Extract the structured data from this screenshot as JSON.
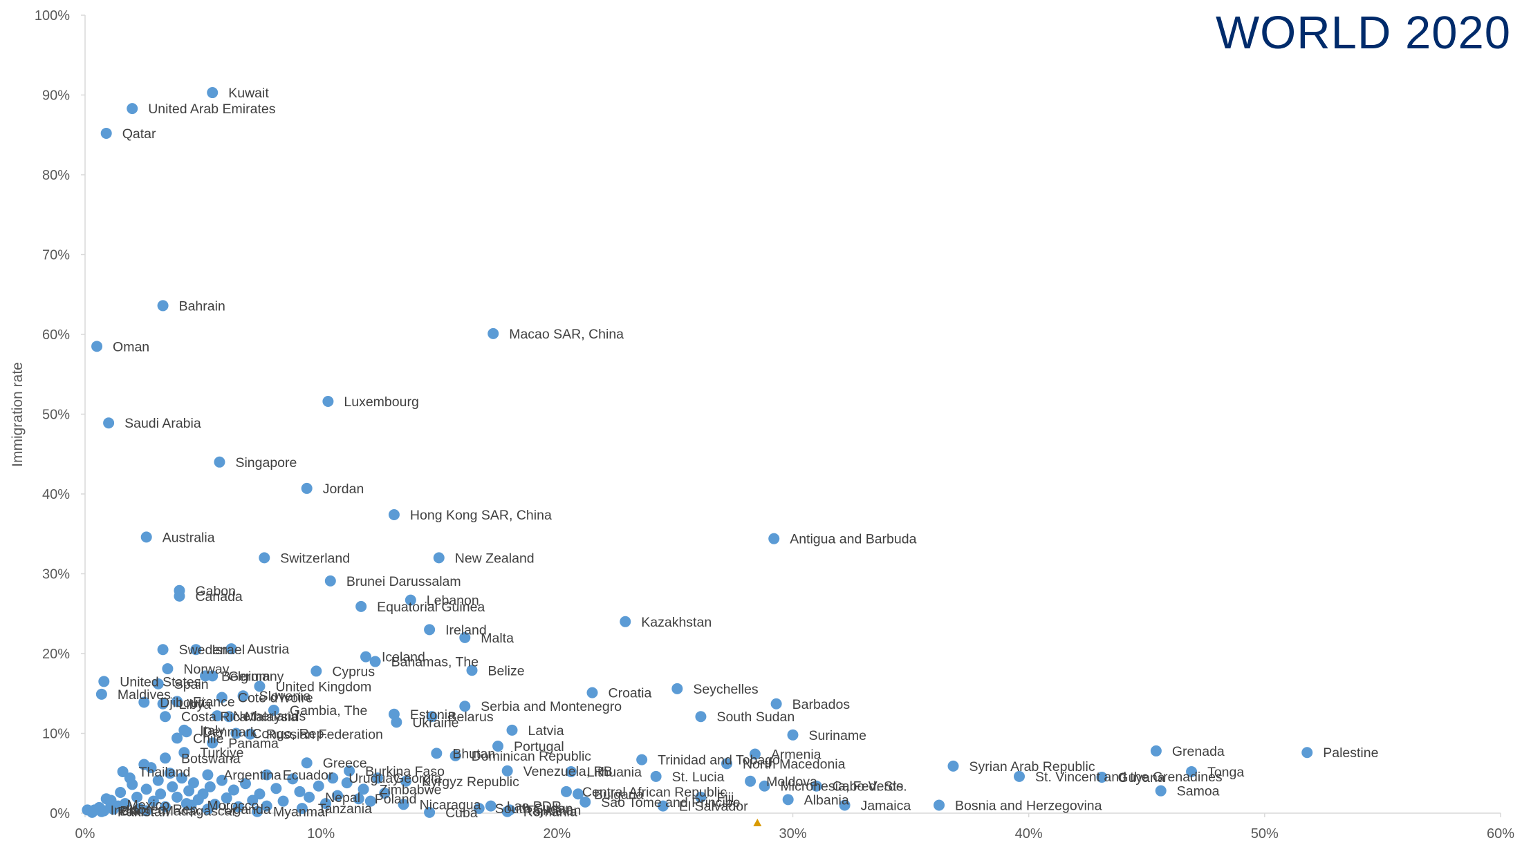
{
  "chart_data": {
    "type": "scatter",
    "title": "WORLD 2020",
    "xlabel": "",
    "ylabel": "Immigration rate",
    "xlim": [
      0,
      0.6
    ],
    "ylim": [
      0,
      1.0
    ],
    "x_ticks": [
      "0%",
      "10%",
      "20%",
      "30%",
      "40%",
      "50%",
      "60%"
    ],
    "y_ticks": [
      "0%",
      "10%",
      "20%",
      "30%",
      "40%",
      "50%",
      "60%",
      "70%",
      "80%",
      "90%",
      "100%"
    ],
    "grid": false,
    "marker_color": "#5b9bd5",
    "title_color": "#002b6b",
    "points": [
      {
        "label": "Kuwait",
        "x": 0.054,
        "y": 0.903
      },
      {
        "label": "United Arab Emirates",
        "x": 0.02,
        "y": 0.883
      },
      {
        "label": "Qatar",
        "x": 0.009,
        "y": 0.852
      },
      {
        "label": "Bahrain",
        "x": 0.033,
        "y": 0.636
      },
      {
        "label": "Oman",
        "x": 0.005,
        "y": 0.585
      },
      {
        "label": "Macao SAR, China",
        "x": 0.173,
        "y": 0.601
      },
      {
        "label": "Luxembourg",
        "x": 0.103,
        "y": 0.516
      },
      {
        "label": "Saudi Arabia",
        "x": 0.01,
        "y": 0.489
      },
      {
        "label": "Singapore",
        "x": 0.057,
        "y": 0.44
      },
      {
        "label": "Jordan",
        "x": 0.094,
        "y": 0.407
      },
      {
        "label": "Hong Kong SAR, China",
        "x": 0.131,
        "y": 0.374
      },
      {
        "label": "Australia",
        "x": 0.026,
        "y": 0.346
      },
      {
        "label": "Antigua and Barbuda",
        "x": 0.292,
        "y": 0.344
      },
      {
        "label": "Switzerland",
        "x": 0.076,
        "y": 0.32
      },
      {
        "label": "New Zealand",
        "x": 0.15,
        "y": 0.32
      },
      {
        "label": "Brunei Darussalam",
        "x": 0.104,
        "y": 0.291
      },
      {
        "label": "Gabon",
        "x": 0.04,
        "y": 0.279
      },
      {
        "label": "Canada",
        "x": 0.04,
        "y": 0.272
      },
      {
        "label": "Lebanon",
        "x": 0.138,
        "y": 0.267
      },
      {
        "label": "Equatorial Guinea",
        "x": 0.117,
        "y": 0.259
      },
      {
        "label": "Kazakhstan",
        "x": 0.229,
        "y": 0.24
      },
      {
        "label": "Ireland",
        "x": 0.146,
        "y": 0.23
      },
      {
        "label": "Malta",
        "x": 0.161,
        "y": 0.22
      },
      {
        "label": "Sweden",
        "x": 0.033,
        "y": 0.205
      },
      {
        "label": "Israel",
        "x": 0.047,
        "y": 0.205
      },
      {
        "label": "Austria",
        "x": 0.062,
        "y": 0.206
      },
      {
        "label": "Iceland",
        "x": 0.119,
        "y": 0.196
      },
      {
        "label": "Bahamas, The",
        "x": 0.123,
        "y": 0.19
      },
      {
        "label": "Norway",
        "x": 0.035,
        "y": 0.181
      },
      {
        "label": "Cyprus",
        "x": 0.098,
        "y": 0.178
      },
      {
        "label": "Belize",
        "x": 0.164,
        "y": 0.179
      },
      {
        "label": "Belgium",
        "x": 0.051,
        "y": 0.172
      },
      {
        "label": "Germany",
        "x": 0.054,
        "y": 0.172
      },
      {
        "label": "United States",
        "x": 0.008,
        "y": 0.165
      },
      {
        "label": "Spain",
        "x": 0.031,
        "y": 0.162
      },
      {
        "label": "United Kingdom",
        "x": 0.074,
        "y": 0.159
      },
      {
        "label": "Seychelles",
        "x": 0.251,
        "y": 0.156
      },
      {
        "label": "Croatia",
        "x": 0.215,
        "y": 0.151
      },
      {
        "label": "Maldives",
        "x": 0.007,
        "y": 0.149
      },
      {
        "label": "Slovenia",
        "x": 0.067,
        "y": 0.147
      },
      {
        "label": "Cote d'Ivoire",
        "x": 0.058,
        "y": 0.145
      },
      {
        "label": "France",
        "x": 0.039,
        "y": 0.14
      },
      {
        "label": "Djibouti",
        "x": 0.025,
        "y": 0.139
      },
      {
        "label": "Libya",
        "x": 0.033,
        "y": 0.137
      },
      {
        "label": "Barbados",
        "x": 0.293,
        "y": 0.137
      },
      {
        "label": "Serbia and Montenegro",
        "x": 0.161,
        "y": 0.134
      },
      {
        "label": "Gambia, The",
        "x": 0.08,
        "y": 0.129
      },
      {
        "label": "Estonia",
        "x": 0.131,
        "y": 0.124
      },
      {
        "label": "Netherlands",
        "x": 0.056,
        "y": 0.122
      },
      {
        "label": "Costa Rica",
        "x": 0.034,
        "y": 0.121
      },
      {
        "label": "Malaysia",
        "x": 0.061,
        "y": 0.121
      },
      {
        "label": "Belarus",
        "x": 0.147,
        "y": 0.121
      },
      {
        "label": "South Sudan",
        "x": 0.261,
        "y": 0.121
      },
      {
        "label": "Ukraine",
        "x": 0.132,
        "y": 0.114
      },
      {
        "label": "Italy",
        "x": 0.042,
        "y": 0.104
      },
      {
        "label": "Denmark",
        "x": 0.043,
        "y": 0.102
      },
      {
        "label": "Latvia",
        "x": 0.181,
        "y": 0.104
      },
      {
        "label": "Congo, Rep.",
        "x": 0.064,
        "y": 0.1
      },
      {
        "label": "Russian Federation",
        "x": 0.07,
        "y": 0.099
      },
      {
        "label": "Suriname",
        "x": 0.3,
        "y": 0.098
      },
      {
        "label": "Chile",
        "x": 0.039,
        "y": 0.094
      },
      {
        "label": "Panama",
        "x": 0.054,
        "y": 0.088
      },
      {
        "label": "Portugal",
        "x": 0.175,
        "y": 0.084
      },
      {
        "label": "Grenada",
        "x": 0.454,
        "y": 0.078
      },
      {
        "label": "Palestine",
        "x": 0.518,
        "y": 0.076
      },
      {
        "label": "Turkiye",
        "x": 0.042,
        "y": 0.076
      },
      {
        "label": "Bhutan",
        "x": 0.149,
        "y": 0.075
      },
      {
        "label": "Armenia",
        "x": 0.284,
        "y": 0.074
      },
      {
        "label": "Dominican Republic",
        "x": 0.157,
        "y": 0.072
      },
      {
        "label": "Botswana",
        "x": 0.034,
        "y": 0.069
      },
      {
        "label": "Trinidad and Tobago",
        "x": 0.236,
        "y": 0.067
      },
      {
        "label": "North Macedonia",
        "x": 0.272,
        "y": 0.062
      },
      {
        "label": "Greece",
        "x": 0.094,
        "y": 0.063
      },
      {
        "label": "Syrian Arab Republic",
        "x": 0.368,
        "y": 0.059
      },
      {
        "label": "Tonga",
        "x": 0.469,
        "y": 0.052
      },
      {
        "label": "Burkina Faso",
        "x": 0.112,
        "y": 0.053
      },
      {
        "label": "Venezuela, RB",
        "x": 0.179,
        "y": 0.053
      },
      {
        "label": "Lithuania",
        "x": 0.206,
        "y": 0.052
      },
      {
        "label": "Thailand",
        "x": 0.016,
        "y": 0.052
      },
      {
        "label": "St. Vincent and the Grenadines",
        "x": 0.396,
        "y": 0.046
      },
      {
        "label": "Guyana",
        "x": 0.431,
        "y": 0.045
      },
      {
        "label": "St. Lucia",
        "x": 0.242,
        "y": 0.046
      },
      {
        "label": "Moldova",
        "x": 0.282,
        "y": 0.04
      },
      {
        "label": "Kyrgyz Republic",
        "x": 0.136,
        "y": 0.04
      },
      {
        "label": "Micronesia, Fed. Sts.",
        "x": 0.288,
        "y": 0.034
      },
      {
        "label": "Cabo Verde",
        "x": 0.31,
        "y": 0.034
      },
      {
        "label": "Samoa",
        "x": 0.456,
        "y": 0.028
      },
      {
        "label": "Central African Republic",
        "x": 0.204,
        "y": 0.027
      },
      {
        "label": "Bulgaria",
        "x": 0.209,
        "y": 0.024
      },
      {
        "label": "Fiji",
        "x": 0.261,
        "y": 0.02
      },
      {
        "label": "Nepal",
        "x": 0.095,
        "y": 0.02
      },
      {
        "label": "Poland",
        "x": 0.116,
        "y": 0.018
      },
      {
        "label": "Albania",
        "x": 0.298,
        "y": 0.017
      },
      {
        "label": "Sao Tome and Principe",
        "x": 0.212,
        "y": 0.014
      },
      {
        "label": "Jamaica",
        "x": 0.322,
        "y": 0.01
      },
      {
        "label": "Bosnia and Herzegovina",
        "x": 0.362,
        "y": 0.01
      },
      {
        "label": "El Salvador",
        "x": 0.245,
        "y": 0.009
      },
      {
        "label": "Nicaragua",
        "x": 0.135,
        "y": 0.011
      },
      {
        "label": "Lao PDR",
        "x": 0.172,
        "y": 0.009
      },
      {
        "label": "South Sudan",
        "x": 0.167,
        "y": 0.006
      },
      {
        "label": "Tajikistan",
        "x": 0.18,
        "y": 0.004
      },
      {
        "label": "Romania",
        "x": 0.179,
        "y": 0.002
      },
      {
        "label": "Cuba",
        "x": 0.146,
        "y": 0.001
      },
      {
        "label": "Tanzania",
        "x": 0.092,
        "y": 0.006
      },
      {
        "label": "Pakistan",
        "x": 0.007,
        "y": 0.002
      },
      {
        "label": "Korea, Rep.",
        "x": 0.012,
        "y": 0.005
      },
      {
        "label": "Uganda",
        "x": 0.052,
        "y": 0.005
      },
      {
        "label": "Madagascar",
        "x": 0.026,
        "y": 0.003
      },
      {
        "label": "Myanmar",
        "x": 0.073,
        "y": 0.002
      },
      {
        "label": "Zimbabwe",
        "x": 0.118,
        "y": 0.03
      },
      {
        "label": "Uruguay",
        "x": 0.105,
        "y": 0.044
      },
      {
        "label": "Ecuador",
        "x": 0.077,
        "y": 0.048
      },
      {
        "label": "Argentina",
        "x": 0.052,
        "y": 0.048
      },
      {
        "label": "Mexico",
        "x": 0.011,
        "y": 0.011
      },
      {
        "label": "India",
        "x": 0.004,
        "y": 0.004
      },
      {
        "label": "Georgia",
        "x": 0.124,
        "y": 0.044
      },
      {
        "label": "Morocco",
        "x": 0.045,
        "y": 0.01
      },
      {
        "label": "Brazil",
        "x": 0.008,
        "y": 0.003
      }
    ],
    "unlabeled_points": [
      {
        "x": 0.001,
        "y": 0.004
      },
      {
        "x": 0.003,
        "y": 0.001
      },
      {
        "x": 0.006,
        "y": 0.007
      },
      {
        "x": 0.009,
        "y": 0.018
      },
      {
        "x": 0.011,
        "y": 0.016
      },
      {
        "x": 0.014,
        "y": 0.009
      },
      {
        "x": 0.015,
        "y": 0.026
      },
      {
        "x": 0.017,
        "y": 0.012
      },
      {
        "x": 0.019,
        "y": 0.044
      },
      {
        "x": 0.02,
        "y": 0.036
      },
      {
        "x": 0.022,
        "y": 0.02
      },
      {
        "x": 0.023,
        "y": 0.006
      },
      {
        "x": 0.025,
        "y": 0.061
      },
      {
        "x": 0.026,
        "y": 0.03
      },
      {
        "x": 0.028,
        "y": 0.057
      },
      {
        "x": 0.029,
        "y": 0.015
      },
      {
        "x": 0.031,
        "y": 0.041
      },
      {
        "x": 0.032,
        "y": 0.024
      },
      {
        "x": 0.034,
        "y": 0.008
      },
      {
        "x": 0.036,
        "y": 0.05
      },
      {
        "x": 0.037,
        "y": 0.033
      },
      {
        "x": 0.039,
        "y": 0.02
      },
      {
        "x": 0.041,
        "y": 0.044
      },
      {
        "x": 0.043,
        "y": 0.012
      },
      {
        "x": 0.044,
        "y": 0.028
      },
      {
        "x": 0.046,
        "y": 0.038
      },
      {
        "x": 0.048,
        "y": 0.017
      },
      {
        "x": 0.05,
        "y": 0.024
      },
      {
        "x": 0.053,
        "y": 0.033
      },
      {
        "x": 0.055,
        "y": 0.011
      },
      {
        "x": 0.058,
        "y": 0.041
      },
      {
        "x": 0.06,
        "y": 0.019
      },
      {
        "x": 0.063,
        "y": 0.029
      },
      {
        "x": 0.065,
        "y": 0.008
      },
      {
        "x": 0.068,
        "y": 0.037
      },
      {
        "x": 0.071,
        "y": 0.016
      },
      {
        "x": 0.074,
        "y": 0.024
      },
      {
        "x": 0.077,
        "y": 0.009
      },
      {
        "x": 0.081,
        "y": 0.031
      },
      {
        "x": 0.084,
        "y": 0.015
      },
      {
        "x": 0.088,
        "y": 0.043
      },
      {
        "x": 0.091,
        "y": 0.027
      },
      {
        "x": 0.099,
        "y": 0.034
      },
      {
        "x": 0.102,
        "y": 0.012
      },
      {
        "x": 0.107,
        "y": 0.022
      },
      {
        "x": 0.111,
        "y": 0.038
      },
      {
        "x": 0.121,
        "y": 0.015
      },
      {
        "x": 0.127,
        "y": 0.025
      }
    ],
    "x_marker": {
      "x": 0.285,
      "color": "#d99a00"
    }
  }
}
